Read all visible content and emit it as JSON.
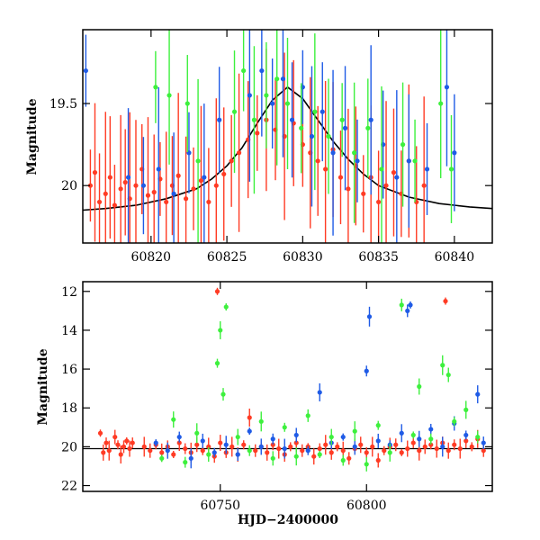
{
  "chart_data": [
    {
      "type": "scatter",
      "panel": "top",
      "title": "",
      "xlabel": "",
      "ylabel": "Magnitude",
      "xlim": [
        60815.5,
        60842.5
      ],
      "ylim": [
        20.35,
        19.05
      ],
      "y_inverted": true,
      "x_ticks": [
        60820,
        60825,
        60830,
        60835,
        60840
      ],
      "x_tick_labels": [
        "60820",
        "60825",
        "60830",
        "60835",
        "60840"
      ],
      "y_ticks": [
        19.5,
        20
      ],
      "y_tick_labels": [
        "19.5",
        "20"
      ],
      "grid": false,
      "legend": "none",
      "colors": {
        "red": "#ff3b24",
        "blue": "#1f5be6",
        "green": "#3df03d",
        "model": "#000000"
      },
      "series": [
        {
          "color": "red",
          "x": [
            60816.0,
            60816.3,
            60816.6,
            60817.0,
            60817.3,
            60817.6,
            60818.0,
            60818.3,
            60818.6,
            60819.0,
            60819.4,
            60819.8,
            60820.2,
            60820.6,
            60821.0,
            60821.4,
            60821.8,
            60822.3,
            60822.8,
            60823.3,
            60823.8,
            60824.3,
            60824.8,
            60825.3,
            60825.8,
            60826.4,
            60827.0,
            60827.6,
            60828.2,
            60828.8,
            60829.4,
            60830.0,
            60830.5,
            60831.0,
            60831.5,
            60832.0,
            60832.5,
            60833.0,
            60833.5,
            60834.0,
            60834.5,
            60835.0,
            60835.5,
            60836.0,
            60836.5,
            60837.0,
            60837.5,
            60838.0
          ],
          "y": [
            20.0,
            19.92,
            20.1,
            20.05,
            19.95,
            20.12,
            20.02,
            19.98,
            20.08,
            20.0,
            19.9,
            20.06,
            20.04,
            19.96,
            20.1,
            20.0,
            19.94,
            20.08,
            20.02,
            19.97,
            20.1,
            20.0,
            19.93,
            19.85,
            19.8,
            19.72,
            19.68,
            19.6,
            19.66,
            19.7,
            19.62,
            19.75,
            19.8,
            19.85,
            19.9,
            19.78,
            19.95,
            20.02,
            19.88,
            20.05,
            19.95,
            20.1,
            20.0,
            19.92,
            20.05,
            19.85,
            20.1,
            20.0
          ]
        },
        {
          "color": "blue",
          "x": [
            60815.7,
            60818.5,
            60819.5,
            60820.5,
            60821.5,
            60822.5,
            60823.5,
            60824.5,
            60826.5,
            60827.3,
            60828.0,
            60828.7,
            60829.3,
            60830.0,
            60830.6,
            60831.3,
            60832.0,
            60832.8,
            60833.6,
            60834.5,
            60835.3,
            60836.2,
            60837.0,
            60838.2,
            60839.5,
            60840.0
          ],
          "y": [
            19.3,
            19.95,
            20.0,
            19.9,
            20.05,
            19.8,
            19.95,
            19.6,
            19.45,
            19.3,
            19.5,
            19.35,
            19.6,
            19.4,
            19.7,
            19.55,
            19.8,
            19.65,
            19.85,
            19.6,
            19.75,
            19.95,
            19.85,
            19.9,
            19.4,
            19.8
          ]
        },
        {
          "color": "green",
          "x": [
            60820.3,
            60821.2,
            60822.4,
            60823.1,
            60825.5,
            60826.1,
            60826.8,
            60827.6,
            60828.3,
            60829.0,
            60829.9,
            60830.8,
            60831.7,
            60832.6,
            60833.4,
            60834.3,
            60835.2,
            60836.6,
            60837.4,
            60839.1,
            60839.8
          ],
          "y": [
            19.4,
            19.45,
            19.5,
            19.85,
            19.55,
            19.3,
            19.6,
            19.45,
            19.35,
            19.5,
            19.65,
            19.55,
            19.7,
            19.6,
            19.8,
            19.65,
            19.9,
            19.75,
            19.85,
            19.5,
            19.9
          ]
        }
      ],
      "model_curve": {
        "x": [
          60815.5,
          60817,
          60819,
          60821,
          60823,
          60824,
          60825,
          60826,
          60827,
          60828,
          60829,
          60830,
          60831,
          60832,
          60833,
          60834,
          60835,
          60837,
          60839,
          60841,
          60842.5
        ],
        "y": [
          20.15,
          20.14,
          20.12,
          20.08,
          20.02,
          19.96,
          19.88,
          19.77,
          19.62,
          19.48,
          19.4,
          19.47,
          19.6,
          19.73,
          19.84,
          19.93,
          20.0,
          20.07,
          20.11,
          20.13,
          20.14
        ]
      }
    },
    {
      "type": "scatter",
      "panel": "bottom",
      "title": "",
      "xlabel": "HJD−2400000",
      "ylabel": "Magnitude",
      "xlim": [
        60703,
        60843
      ],
      "ylim": [
        22.3,
        11.5
      ],
      "y_inverted": true,
      "x_ticks": [
        60750,
        60800
      ],
      "x_tick_labels": [
        "60750",
        "60800"
      ],
      "y_ticks": [
        12,
        14,
        16,
        18,
        20,
        22
      ],
      "y_tick_labels": [
        "12",
        "14",
        "16",
        "18",
        "20",
        "22"
      ],
      "grid": false,
      "legend": "none",
      "baseline": 20.1,
      "series": [
        {
          "color": "red",
          "x": [
            60709,
            60710,
            60711,
            60712,
            60714,
            60715,
            60716,
            60717,
            60718,
            60719,
            60720,
            60724,
            60726,
            60728,
            60730,
            60732,
            60734,
            60736,
            60738,
            60740,
            60742,
            60744,
            60746,
            60748,
            60749,
            60750,
            60752,
            60754,
            60756,
            60758,
            60760,
            60762,
            60764,
            60766,
            60768,
            60770,
            60772,
            60774,
            60776,
            60778,
            60780,
            60782,
            60784,
            60786,
            60788,
            60790,
            60792,
            60794,
            60796,
            60798,
            60800,
            60802,
            60804,
            60806,
            60808,
            60810,
            60812,
            60814,
            60816,
            60818,
            60820,
            60822,
            60824,
            60826,
            60827,
            60828,
            60830,
            60832,
            60834,
            60836,
            60838,
            60840
          ],
          "y": [
            19.3,
            20.3,
            19.8,
            20.2,
            19.5,
            19.9,
            20.4,
            20.0,
            19.7,
            20.1,
            19.8,
            20.0,
            20.2,
            19.9,
            20.3,
            20.0,
            20.4,
            19.8,
            20.1,
            20.3,
            19.9,
            20.2,
            20.0,
            20.5,
            12.0,
            19.8,
            20.3,
            20.0,
            20.4,
            19.9,
            18.5,
            20.2,
            20.0,
            20.3,
            19.9,
            20.1,
            20.4,
            20.0,
            19.8,
            20.2,
            20.0,
            20.5,
            20.1,
            19.9,
            20.3,
            20.0,
            20.2,
            20.6,
            20.1,
            19.9,
            20.3,
            20.0,
            20.7,
            20.2,
            20.0,
            19.9,
            20.3,
            20.1,
            19.8,
            20.2,
            20.0,
            19.9,
            20.1,
            19.8,
            12.5,
            20.2,
            19.9,
            20.1,
            19.7,
            20.0,
            19.6,
            20.2
          ]
        },
        {
          "color": "blue",
          "x": [
            60728,
            60732,
            60736,
            60740,
            60744,
            60748,
            60752,
            60756,
            60760,
            60764,
            60768,
            60772,
            60776,
            60780,
            60784,
            60788,
            60792,
            60796,
            60800,
            60801,
            60804,
            60808,
            60812,
            60814,
            60815,
            60818,
            60822,
            60826,
            60830,
            60834,
            60838,
            60840
          ],
          "y": [
            19.8,
            20.2,
            19.5,
            20.6,
            19.7,
            20.3,
            19.9,
            20.4,
            19.2,
            20.0,
            19.6,
            20.1,
            19.4,
            20.2,
            17.2,
            19.8,
            19.5,
            20.0,
            16.1,
            13.3,
            19.7,
            19.9,
            19.3,
            13.0,
            12.7,
            19.6,
            19.1,
            20.0,
            18.8,
            19.4,
            17.3,
            19.8
          ]
        },
        {
          "color": "green",
          "x": [
            60730,
            60734,
            60738,
            60742,
            60746,
            60749,
            60750,
            60751,
            60752,
            60756,
            60760,
            60764,
            60768,
            60772,
            60776,
            60780,
            60784,
            60788,
            60792,
            60796,
            60800,
            60804,
            60808,
            60812,
            60816,
            60818,
            60822,
            60826,
            60828,
            60830,
            60834,
            60838
          ],
          "y": [
            20.6,
            18.6,
            20.8,
            19.3,
            20.4,
            15.7,
            14.0,
            17.3,
            12.8,
            19.5,
            20.2,
            18.7,
            20.6,
            19.0,
            20.5,
            18.4,
            20.4,
            19.5,
            20.7,
            19.2,
            20.9,
            18.9,
            20.3,
            12.7,
            19.4,
            16.9,
            19.6,
            15.8,
            16.3,
            18.7,
            18.1,
            19.5
          ]
        }
      ]
    }
  ]
}
